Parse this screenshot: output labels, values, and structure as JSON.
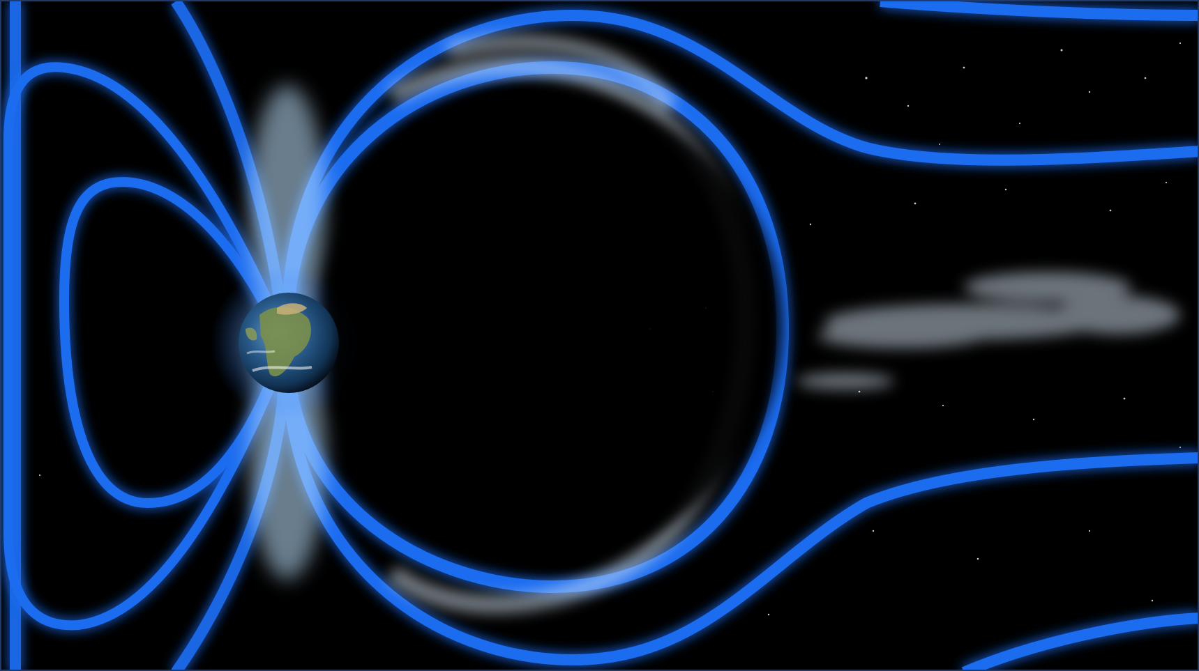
{
  "image": {
    "kind": "illustration",
    "subject": "earth-magnetosphere-field-lines",
    "colors": {
      "background": "#000000",
      "field_line": "#1e6cf0",
      "field_glow": "#9fd0ff",
      "plasma": "#d7e6f5",
      "frame_border": "#1f3a6b"
    }
  }
}
